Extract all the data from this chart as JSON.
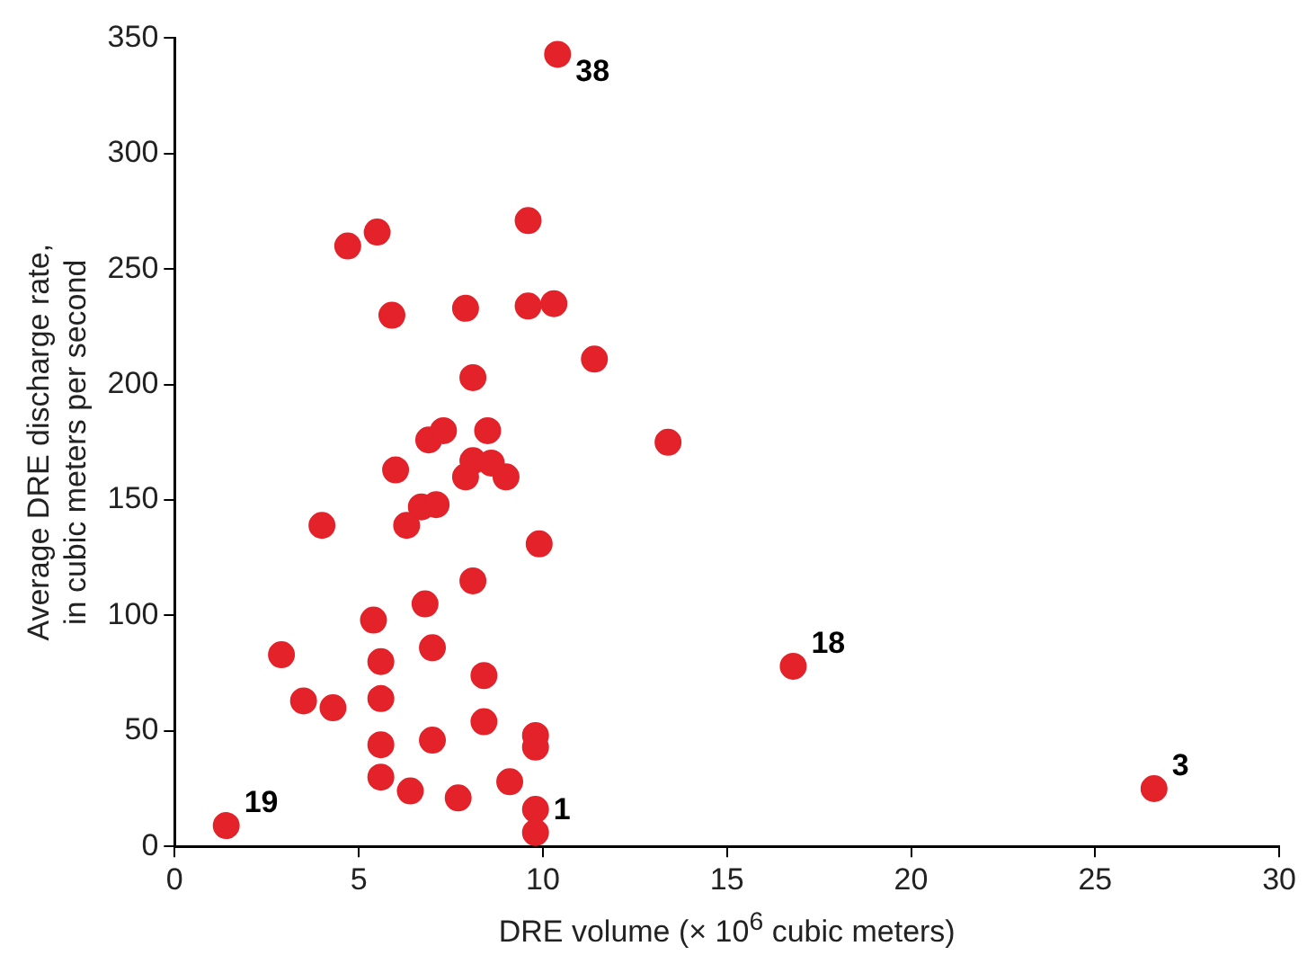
{
  "chart_data": {
    "type": "scatter",
    "xlabel": "DRE volume (× 10$^{6}$ cubic meters)",
    "ylabel": "Average DRE discharge rate, in cubic meters per second",
    "xlim": [
      0,
      30
    ],
    "xticks": [
      0,
      5,
      10,
      15,
      20,
      25,
      30
    ],
    "ylim": [
      0,
      350
    ],
    "yticks": [
      0,
      50,
      100,
      150,
      200,
      250,
      300,
      350
    ],
    "grid": false,
    "legend": false,
    "marker": "circle",
    "series": [
      {
        "color": "#e3222a",
        "x": [
          10.4,
          5.5,
          4.7,
          9.6,
          5.9,
          7.9,
          9.6,
          10.3,
          11.4,
          8.1,
          13.4,
          6.0,
          6.9,
          7.3,
          8.5,
          8.1,
          8.6,
          7.9,
          9.0,
          6.7,
          7.1,
          6.3,
          4.0,
          9.9,
          8.1,
          5.4,
          6.8,
          2.9,
          7.0,
          5.6,
          8.4,
          16.8,
          3.5,
          4.3,
          5.6,
          8.4,
          5.6,
          7.0,
          9.8,
          9.8,
          5.6,
          6.4,
          9.1,
          7.7,
          9.8,
          9.8,
          1.4,
          26.6
        ],
        "values": [
          343,
          266,
          260,
          271,
          230,
          233,
          234,
          235,
          211,
          203,
          175,
          163,
          176,
          180,
          180,
          167,
          166,
          160,
          160,
          147,
          148,
          139,
          139,
          131,
          115,
          98,
          105,
          83,
          86,
          80,
          74,
          78,
          63,
          60,
          64,
          54,
          44,
          46,
          48,
          43,
          30,
          24,
          28,
          21,
          16,
          6,
          9,
          25
        ]
      }
    ],
    "annotations": [
      {
        "text": "38",
        "x": 10.4,
        "y": 343
      },
      {
        "text": "18",
        "x": 16.8,
        "y": 78
      },
      {
        "text": "3",
        "x": 26.6,
        "y": 25
      },
      {
        "text": "19",
        "x": 1.4,
        "y": 9
      },
      {
        "text": "1",
        "x": 9.8,
        "y": 6
      }
    ]
  }
}
